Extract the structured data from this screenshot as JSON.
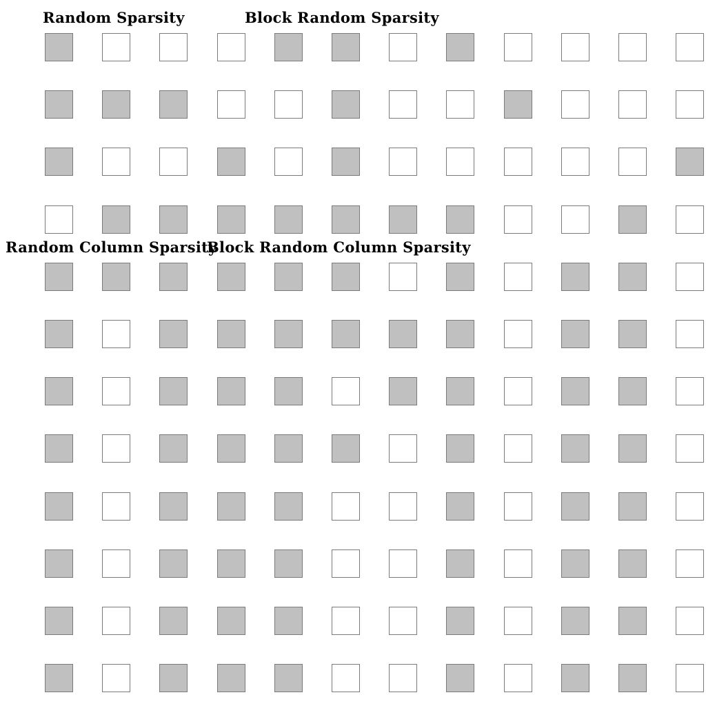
{
  "colors": {
    "filled": "#c0c0c0",
    "empty": "#ffffff",
    "stroke": "#7a7a7a"
  },
  "labels": {
    "random_sparsity": "Random Sparsity",
    "block_random_sparsity": "Block Random Sparsity",
    "random_column_sparsity": "Random Column Sparsity",
    "block_random_column_sparsity": "Block Random Column Sparsity"
  },
  "grid": {
    "rows": 12,
    "cols": 12,
    "cells": [
      [
        1,
        0,
        0,
        0,
        1,
        1,
        0,
        1,
        0,
        0,
        0,
        0
      ],
      [
        1,
        1,
        1,
        0,
        0,
        1,
        0,
        0,
        1,
        0,
        0,
        0
      ],
      [
        1,
        0,
        0,
        1,
        0,
        1,
        0,
        0,
        0,
        0,
        0,
        1
      ],
      [
        0,
        1,
        1,
        1,
        1,
        1,
        1,
        1,
        0,
        0,
        1,
        0
      ],
      [
        1,
        1,
        1,
        1,
        1,
        1,
        0,
        1,
        0,
        1,
        1,
        0
      ],
      [
        1,
        0,
        1,
        1,
        1,
        1,
        1,
        1,
        0,
        1,
        1,
        0
      ],
      [
        1,
        0,
        1,
        1,
        1,
        0,
        1,
        1,
        0,
        1,
        1,
        0
      ],
      [
        1,
        0,
        1,
        1,
        1,
        1,
        0,
        1,
        0,
        1,
        1,
        0
      ],
      [
        1,
        0,
        1,
        1,
        1,
        0,
        0,
        1,
        0,
        1,
        1,
        0
      ],
      [
        1,
        0,
        1,
        1,
        1,
        0,
        0,
        1,
        0,
        1,
        1,
        0
      ],
      [
        1,
        0,
        1,
        1,
        1,
        0,
        0,
        1,
        0,
        1,
        1,
        0
      ],
      [
        1,
        0,
        1,
        1,
        1,
        0,
        0,
        1,
        0,
        1,
        1,
        0
      ]
    ]
  }
}
